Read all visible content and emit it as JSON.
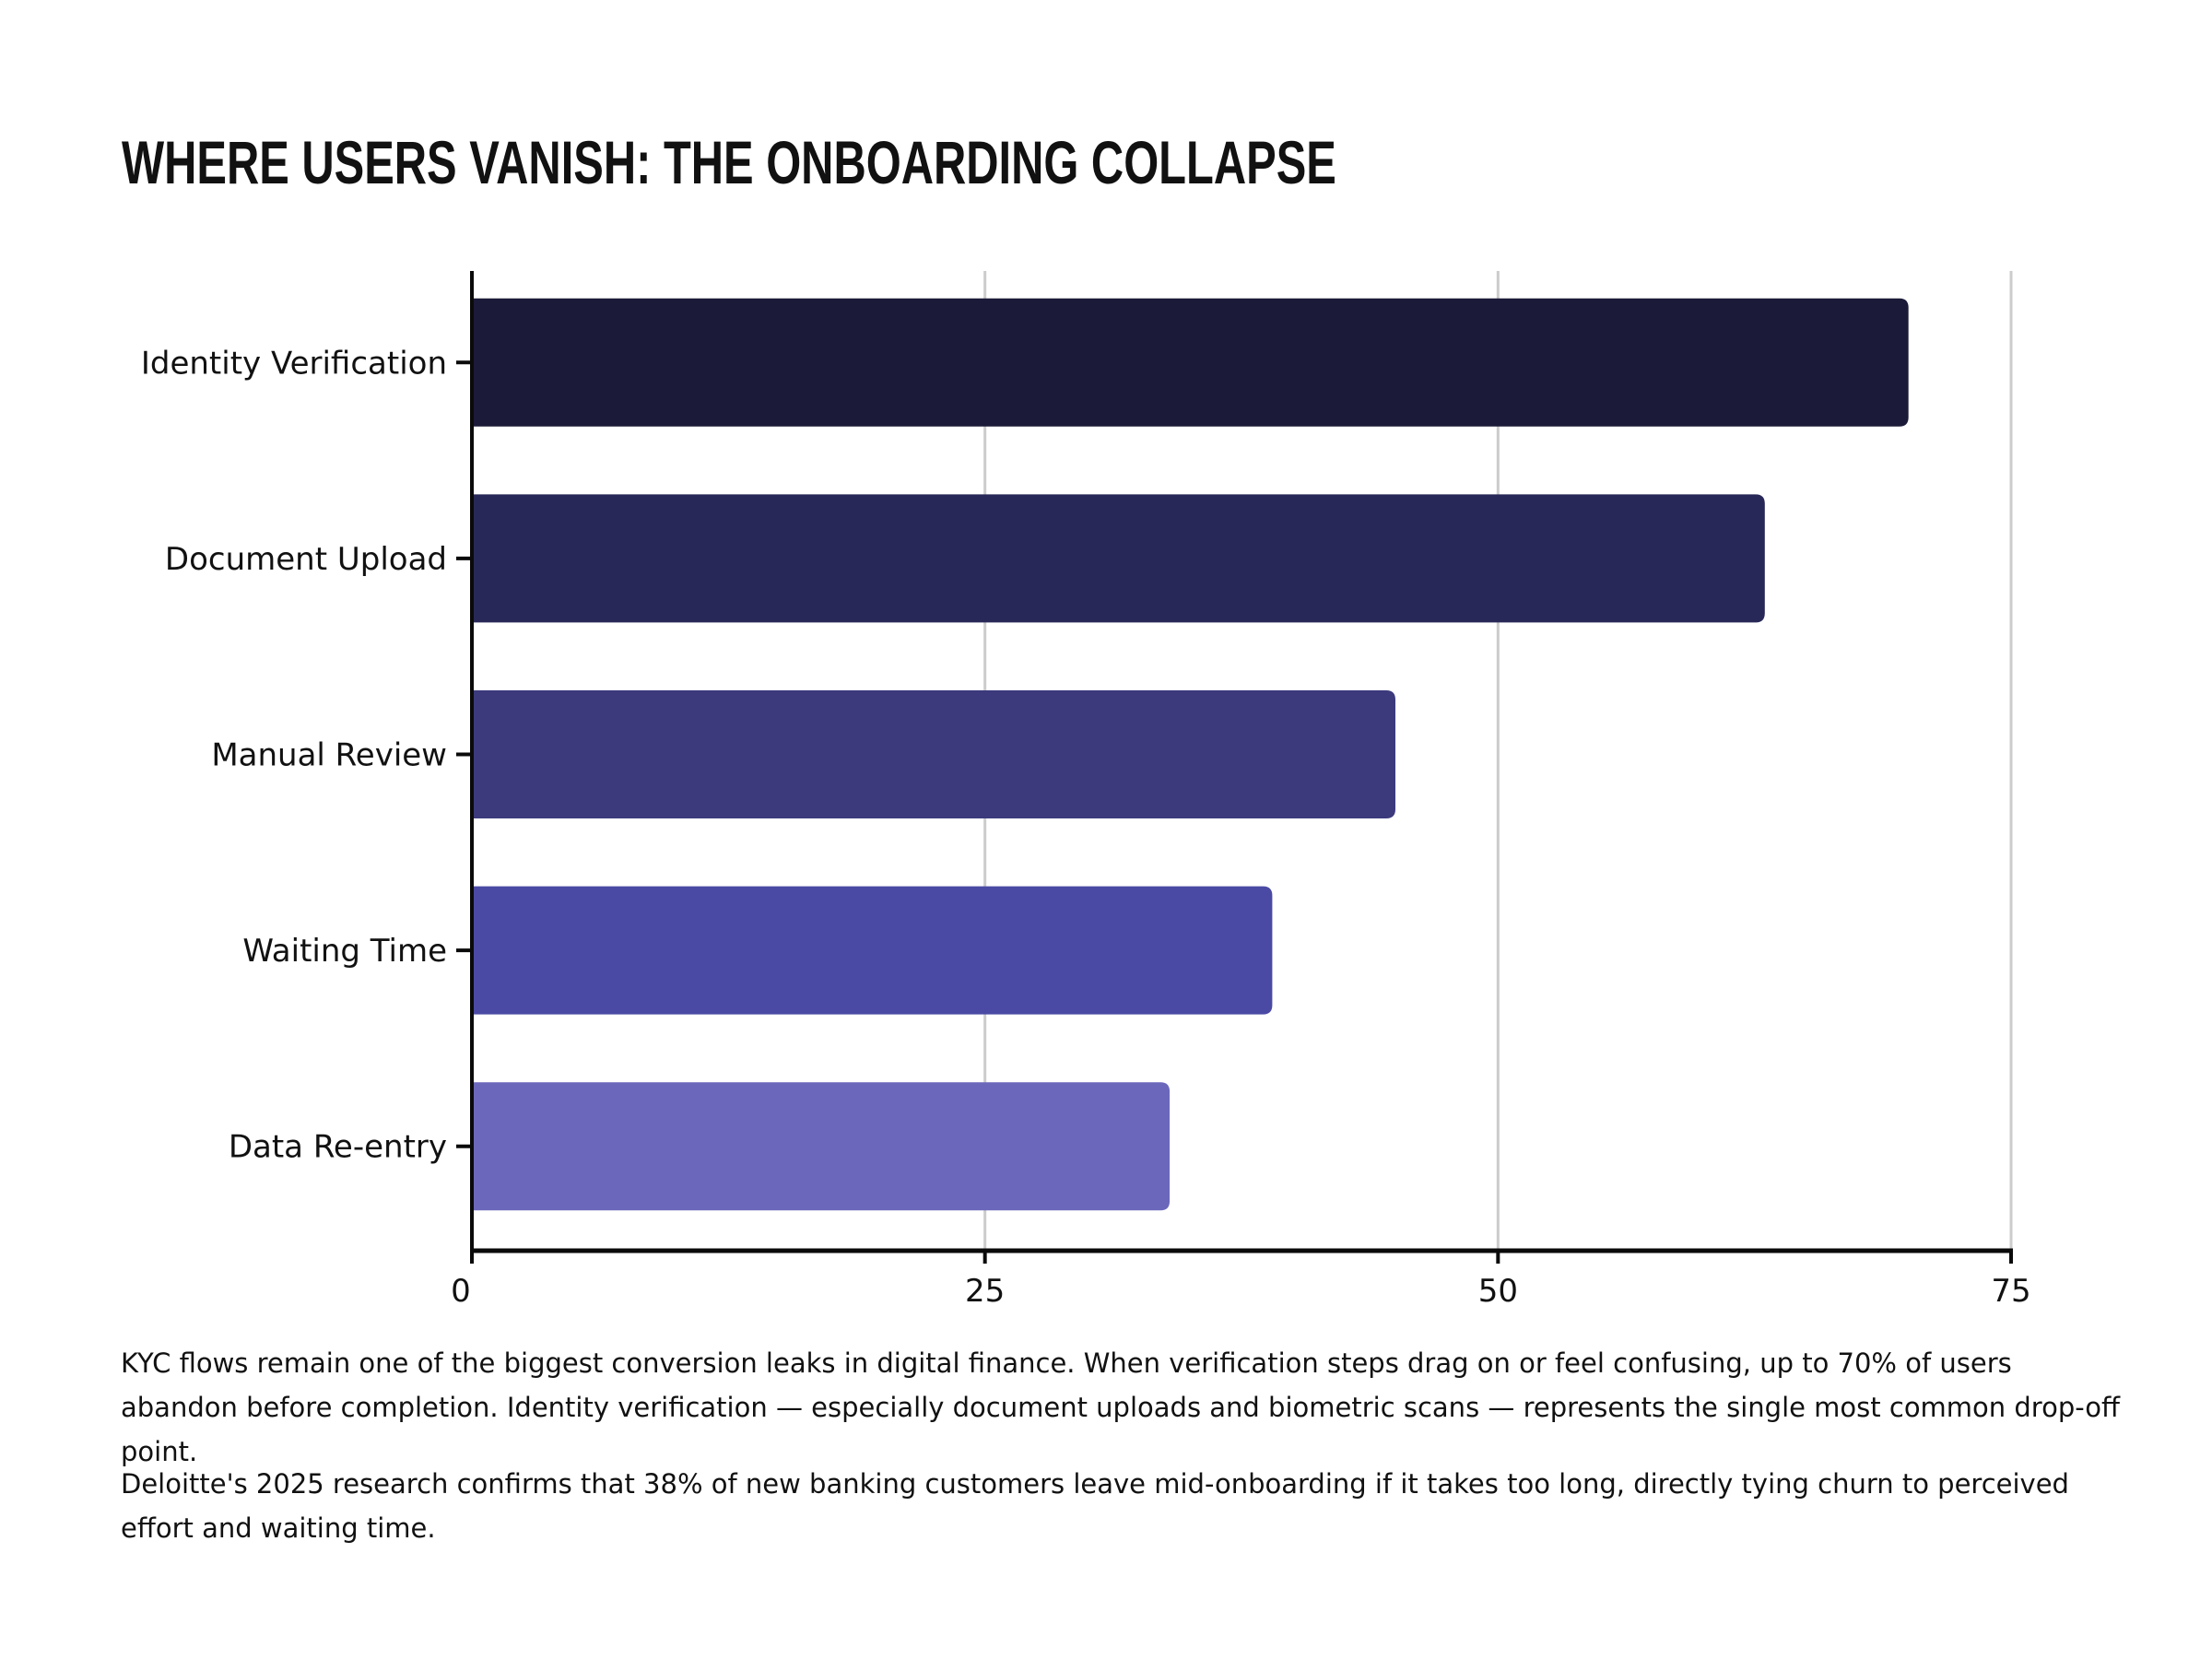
{
  "chart_data": {
    "type": "bar",
    "orientation": "horizontal",
    "title": "WHERE USERS VANISH: THE ONBOARDING COLLAPSE",
    "categories": [
      "Identity Verification",
      "Document Upload",
      "Manual Review",
      "Waiting Time",
      "Data Re-entry"
    ],
    "values": [
      70,
      63,
      45,
      39,
      34
    ],
    "colors": [
      "#1b1a38",
      "#282858",
      "#3c3a7c",
      "#4a4aa4",
      "#6b68bb"
    ],
    "xlim": [
      0,
      75
    ],
    "xticks": [
      "0",
      "25",
      "50",
      "75"
    ],
    "xlabel": "",
    "ylabel": "",
    "grid": "vertical"
  },
  "notes": [
    "KYC flows remain one of the biggest conversion leaks in digital finance. When verification steps drag on or feel confusing, up to 70% of users abandon before completion. Identity verification — especially document uploads and biometric scans — represents the single most common drop-off point.",
    "Deloitte's 2025 research confirms that 38% of new banking customers leave mid-onboarding if it takes too long, directly tying churn to perceived effort and waiting time."
  ]
}
